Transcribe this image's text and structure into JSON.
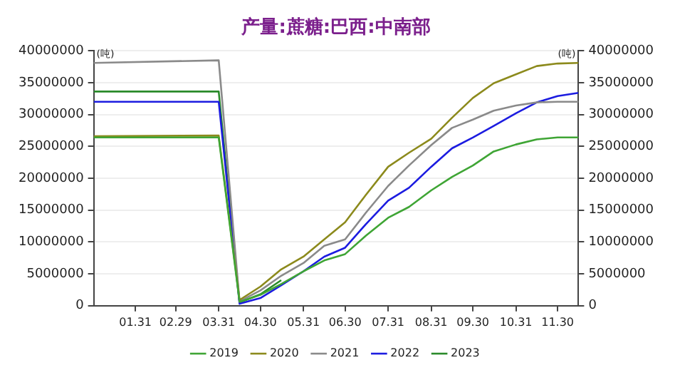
{
  "chart_data": {
    "type": "line",
    "title": "产量:蔗糖:巴西:中南部",
    "ylabel": "(吨)",
    "y2label": "(吨)",
    "x": [
      "--01-01",
      "--03-31",
      "--04-15",
      "--04-30",
      "--05-15",
      "--05-31",
      "--06-15",
      "--06-30",
      "--07-15",
      "--07-31",
      "--08-15",
      "--08-31",
      "--09-15",
      "--09-30",
      "--10-15",
      "--10-31",
      "--11-15",
      "--11-30",
      "--12-15"
    ],
    "series": [
      {
        "name": "2019",
        "color": "#3fa535",
        "values": [
          26400000,
          26400000,
          600000,
          1700000,
          3400000,
          5400000,
          7100000,
          8100000,
          11000000,
          13800000,
          15500000,
          18100000,
          20200000,
          22000000,
          24200000,
          25300000,
          26100000,
          26400000,
          26400000
        ]
      },
      {
        "name": "2020",
        "color": "#8c8a1c",
        "values": [
          26600000,
          26700000,
          900000,
          3000000,
          5700000,
          7700000,
          10400000,
          13100000,
          17400000,
          21800000,
          24000000,
          26200000,
          29500000,
          32600000,
          34900000,
          36300000,
          37600000,
          38000000,
          38100000
        ]
      },
      {
        "name": "2021",
        "color": "#8a8a8a",
        "values": [
          38100000,
          38500000,
          700000,
          2400000,
          4700000,
          6700000,
          9400000,
          10400000,
          14600000,
          18800000,
          22000000,
          25200000,
          27900000,
          29200000,
          30600000,
          31400000,
          31900000,
          32000000,
          32000000
        ]
      },
      {
        "name": "2022",
        "color": "#1c1ce0",
        "values": [
          32000000,
          32000000,
          300000,
          1200000,
          3200000,
          5400000,
          7700000,
          9100000,
          12800000,
          16500000,
          18500000,
          21800000,
          24700000,
          26400000,
          28200000,
          30200000,
          31900000,
          32900000,
          33400000
        ]
      },
      {
        "name": "2023",
        "color": "#2a8a2a",
        "x": [
          "--01-01",
          "--03-31",
          "--04-15",
          "--04-30",
          "--05-15"
        ],
        "values": [
          33600000,
          33600000,
          500000,
          1800000,
          4000000
        ]
      }
    ],
    "xlim": [
      "--01-01",
      "--12-15"
    ],
    "xticks": [
      {
        "value": "--01-31",
        "label": "01.31"
      },
      {
        "value": "--02-29",
        "label": "02.29"
      },
      {
        "value": "--03-31",
        "label": "03.31"
      },
      {
        "value": "--04-30",
        "label": "04.30"
      },
      {
        "value": "--05-31",
        "label": "05.31"
      },
      {
        "value": "--06-30",
        "label": "06.30"
      },
      {
        "value": "--07-31",
        "label": "07.31"
      },
      {
        "value": "--08-31",
        "label": "08.31"
      },
      {
        "value": "--09-30",
        "label": "09.30"
      },
      {
        "value": "--10-31",
        "label": "10.31"
      },
      {
        "value": "--11-30",
        "label": "11.30"
      }
    ],
    "ylim": [
      0,
      40000000
    ],
    "yticks": [
      0,
      5000000,
      10000000,
      15000000,
      20000000,
      25000000,
      30000000,
      35000000,
      40000000
    ],
    "y2lim": [
      0,
      40000000
    ],
    "y2ticks": [
      0,
      5000000,
      10000000,
      15000000,
      20000000,
      25000000,
      30000000,
      35000000,
      40000000
    ],
    "grid": "y",
    "legend": "bottom",
    "marker": "none",
    "line_style": "solid"
  }
}
